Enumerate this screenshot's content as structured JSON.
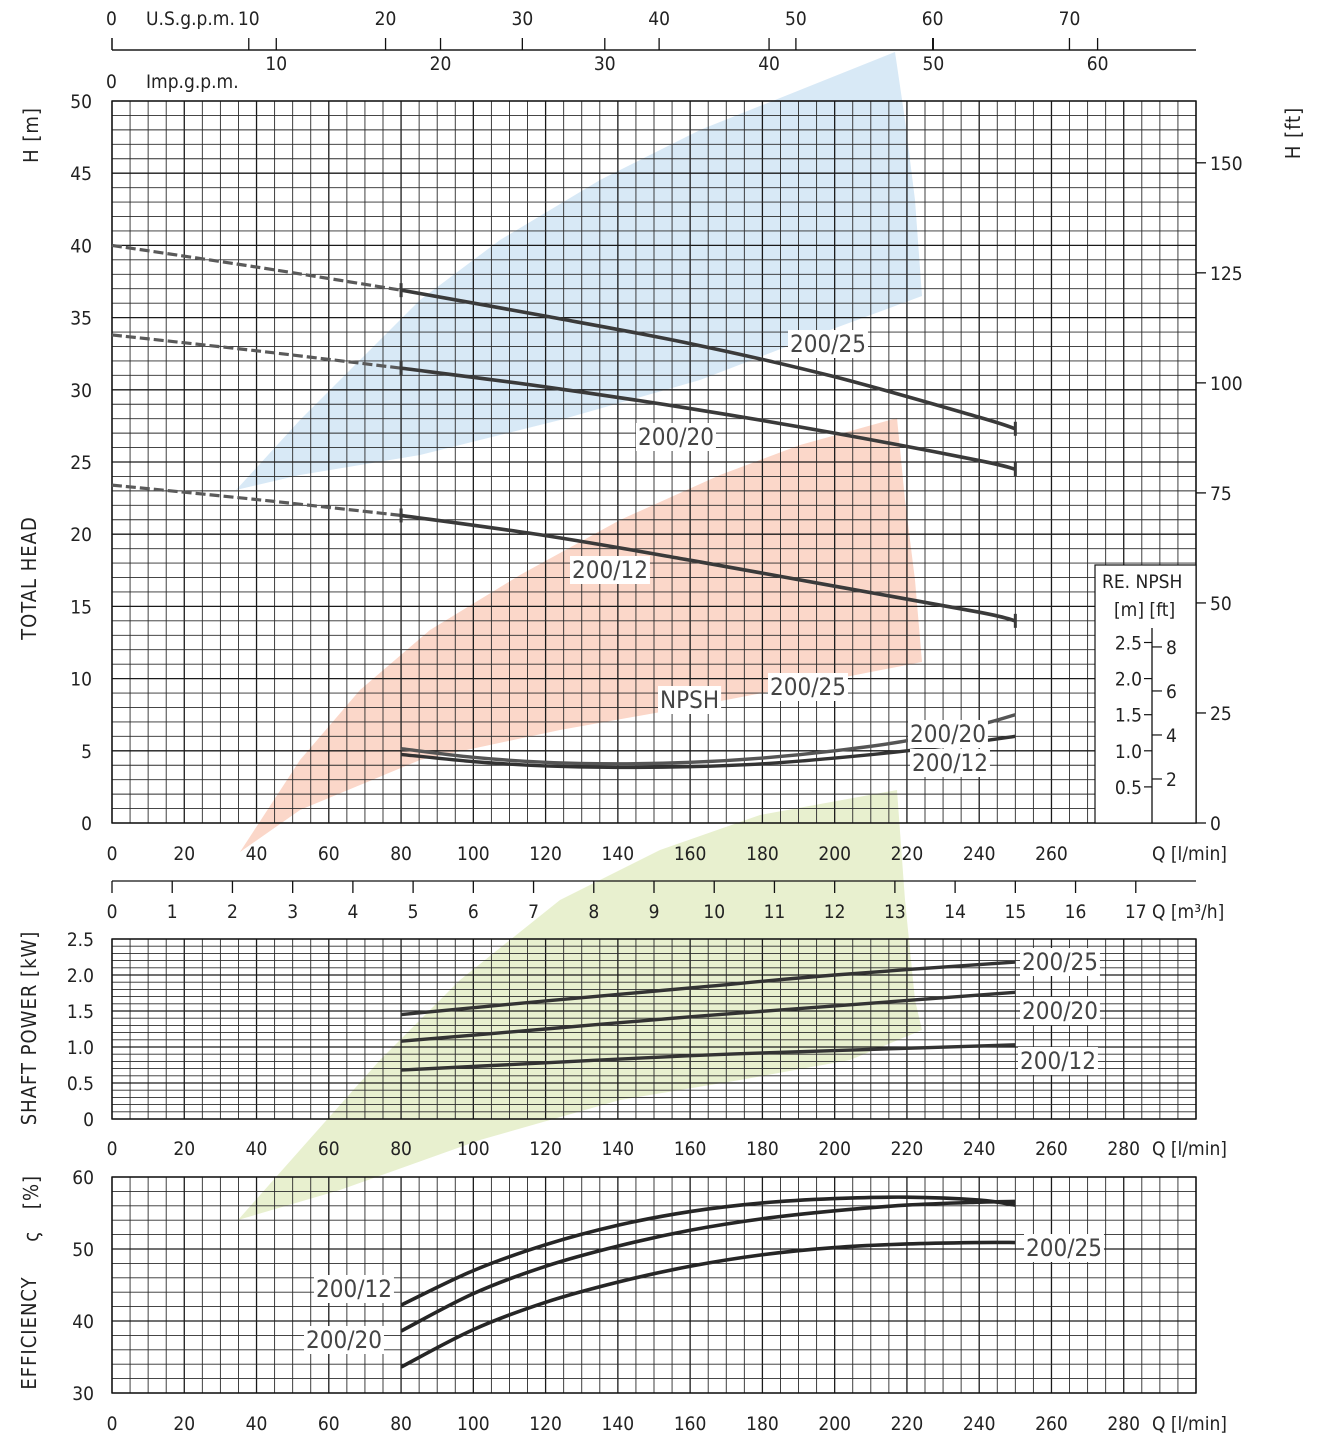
{
  "top_scales": {
    "usgpm": {
      "label": "U.S.g.p.m.",
      "zero": "0",
      "ticks": [
        "10",
        "20",
        "30",
        "40",
        "50",
        "60",
        "70"
      ],
      "values": [
        10,
        20,
        30,
        40,
        50,
        60,
        70
      ]
    },
    "impgpm": {
      "label": "Imp.g.p.m.",
      "zero": "0",
      "ticks": [
        "10",
        "20",
        "30",
        "40",
        "50",
        "60"
      ],
      "values": [
        10,
        20,
        30,
        40,
        50,
        60
      ]
    }
  },
  "colors": {
    "blue_area": "#d8e9f6",
    "red_area": "#fbd7c9",
    "green_area": "#e8f0cf",
    "curve_dark": "#222222",
    "curve_grey": "#5a5a5a"
  },
  "chart_data": [
    {
      "type": "line",
      "panel": "head",
      "ylabel_left": "TOTAL HEAD",
      "yunit_left": "H [m]",
      "yunit_right": "H [ft]",
      "ylim": [
        0,
        50
      ],
      "yticks": [
        "0",
        "5",
        "10",
        "15",
        "20",
        "25",
        "30",
        "35",
        "40",
        "45",
        "50"
      ],
      "ft_ticks": [
        "0",
        "25",
        "50",
        "75",
        "100",
        "125",
        "150"
      ],
      "ft_values": [
        0,
        25,
        50,
        75,
        100,
        125,
        150
      ],
      "xlabel": "Q [l/min]",
      "xticks": [
        "0",
        "20",
        "40",
        "60",
        "80",
        "100",
        "120",
        "140",
        "160",
        "180",
        "200",
        "220",
        "240",
        "260"
      ],
      "x_values": [
        0,
        20,
        40,
        60,
        80,
        100,
        120,
        140,
        160,
        180,
        200,
        220,
        240,
        260
      ],
      "m3h_label": "Q [m³/h]",
      "m3h_ticks": [
        "0",
        "1",
        "2",
        "3",
        "4",
        "5",
        "6",
        "7",
        "8",
        "9",
        "10",
        "11",
        "12",
        "13",
        "14",
        "15",
        "16",
        "17"
      ],
      "series": [
        {
          "name": "200/25",
          "x": [
            0,
            40,
            80,
            120,
            160,
            200,
            240,
            250
          ],
          "y": [
            40,
            38.5,
            36.9,
            35.1,
            33.2,
            30.9,
            28.1,
            27.3
          ],
          "dashed_until": 80
        },
        {
          "name": "200/20",
          "x": [
            0,
            40,
            80,
            120,
            160,
            200,
            240,
            250
          ],
          "y": [
            33.8,
            32.7,
            31.5,
            30.2,
            28.7,
            27,
            25.1,
            24.5
          ],
          "dashed_until": 80
        },
        {
          "name": "200/12",
          "x": [
            0,
            40,
            80,
            120,
            160,
            200,
            240,
            250
          ],
          "y": [
            23.4,
            22.4,
            21.3,
            19.9,
            18.2,
            16.4,
            14.6,
            14
          ]
        }
      ],
      "labels": {
        "s25": "200/25",
        "s20": "200/20",
        "s12": "200/12"
      },
      "npsh": {
        "label": "NPSH",
        "box_title": "RE. NPSH",
        "box_units": "[m]  [ft]",
        "m_ticks": [
          "0.5",
          "1.0",
          "1.5",
          "2.0",
          "2.5"
        ],
        "ft_ticks": [
          "2",
          "4",
          "6",
          "8"
        ],
        "series": [
          {
            "name": "200/25",
            "x": [
              80,
              100,
              120,
              140,
              160,
              180,
              200,
              220,
              240,
              250
            ],
            "y": [
              1.03,
              0.91,
              0.84,
              0.82,
              0.84,
              0.9,
              1.0,
              1.14,
              1.36,
              1.5
            ]
          },
          {
            "name": "200/20 200/12",
            "x": [
              80,
              100,
              120,
              140,
              160,
              180,
              200,
              220,
              240,
              250
            ],
            "y": [
              0.95,
              0.85,
              0.79,
              0.77,
              0.78,
              0.82,
              0.9,
              1.0,
              1.13,
              1.2
            ]
          }
        ],
        "label_25": "200/25",
        "label_20": "200/20",
        "label_12": "200/12"
      }
    },
    {
      "type": "line",
      "panel": "power",
      "ylabel": "SHAFT POWER  [kW]",
      "ylim": [
        0,
        2.5
      ],
      "yticks": [
        "0",
        "0.5",
        "1.0",
        "1.5",
        "2.0",
        "2.5"
      ],
      "xlabel": "Q [l/min]",
      "xticks": [
        "0",
        "20",
        "40",
        "60",
        "80",
        "100",
        "120",
        "140",
        "160",
        "180",
        "200",
        "220",
        "240",
        "260",
        "280"
      ],
      "series": [
        {
          "name": "200/25",
          "x": [
            80,
            120,
            160,
            200,
            250
          ],
          "y": [
            1.45,
            1.64,
            1.82,
            2.0,
            2.18
          ]
        },
        {
          "name": "200/20",
          "x": [
            80,
            120,
            160,
            200,
            250
          ],
          "y": [
            1.08,
            1.25,
            1.42,
            1.57,
            1.76
          ]
        },
        {
          "name": "200/12",
          "x": [
            80,
            120,
            160,
            200,
            250
          ],
          "y": [
            0.68,
            0.78,
            0.88,
            0.95,
            1.03
          ]
        }
      ]
    },
    {
      "type": "line",
      "panel": "efficiency",
      "ylabel": "EFFICIENCY",
      "ysymbol": "ς",
      "yunit": "[%]",
      "ylim": [
        30,
        60
      ],
      "yticks": [
        "30",
        "40",
        "50",
        "60"
      ],
      "xlabel": "Q [l/min]",
      "xticks": [
        "0",
        "20",
        "40",
        "60",
        "80",
        "100",
        "120",
        "140",
        "160",
        "180",
        "200",
        "220",
        "240",
        "260",
        "280"
      ],
      "series": [
        {
          "name": "200/12",
          "x": [
            80,
            100,
            120,
            140,
            160,
            180,
            200,
            220,
            240,
            250
          ],
          "y": [
            42.2,
            47,
            50.6,
            53.3,
            55.2,
            56.4,
            57,
            57.2,
            56.8,
            56.1
          ]
        },
        {
          "name": "200/20",
          "x": [
            80,
            100,
            120,
            140,
            160,
            180,
            200,
            220,
            240,
            250
          ],
          "y": [
            38.6,
            43.8,
            47.6,
            50.4,
            52.6,
            54.2,
            55.3,
            56.1,
            56.5,
            56.6
          ]
        },
        {
          "name": "200/25",
          "x": [
            80,
            100,
            120,
            140,
            160,
            180,
            200,
            220,
            240,
            250
          ],
          "y": [
            33.6,
            38.8,
            42.6,
            45.4,
            47.6,
            49.2,
            50.2,
            50.7,
            50.9,
            50.9
          ]
        }
      ]
    }
  ]
}
